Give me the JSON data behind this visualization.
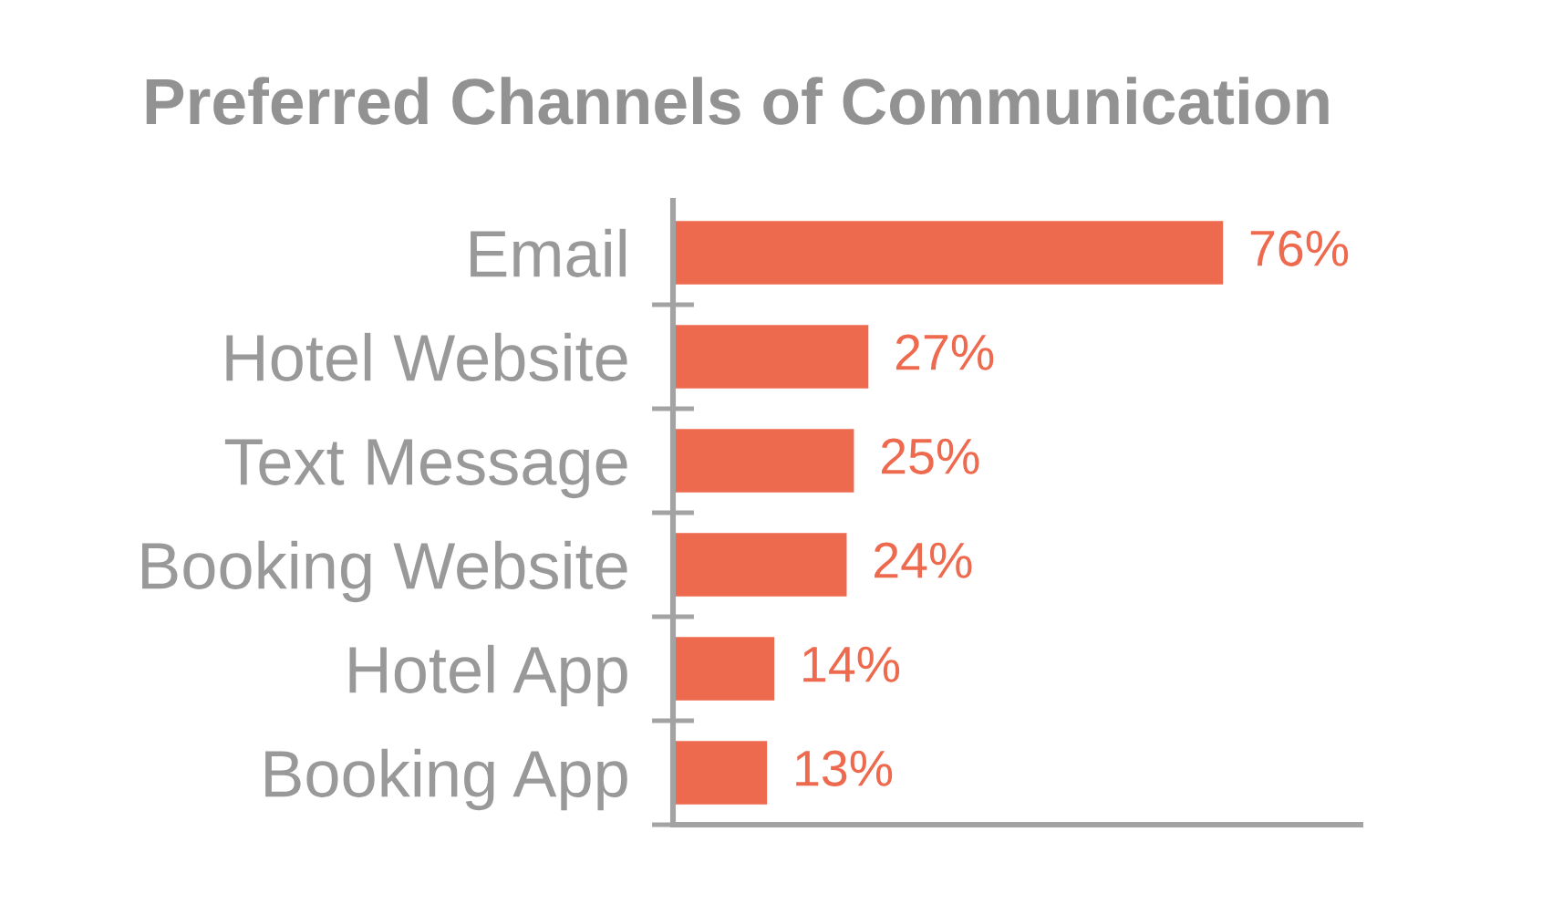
{
  "chart_data": {
    "type": "bar",
    "orientation": "horizontal",
    "title": "Preferred Channels of Communication",
    "categories": [
      "Email",
      "Hotel Website",
      "Text Message",
      "Booking Website",
      "Hotel App",
      "Booking App"
    ],
    "values": [
      76,
      27,
      25,
      24,
      14,
      13
    ],
    "value_labels": [
      "76%",
      "27%",
      "25%",
      "24%",
      "14%",
      "13%"
    ],
    "color": "#ee6a4f",
    "xlim": [
      0,
      95
    ],
    "tick_labels": "y"
  }
}
